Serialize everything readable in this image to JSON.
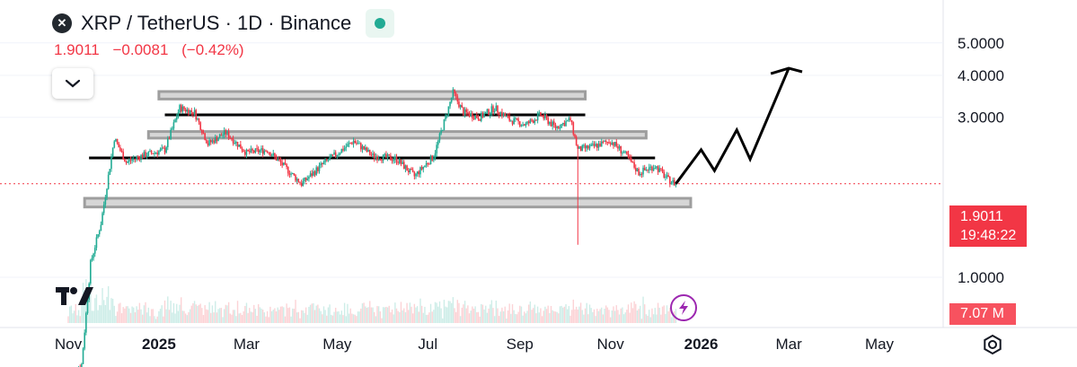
{
  "header": {
    "symbol_icon": "xrp-logo-icon",
    "title": "XRP / TetherUS · 1D · Binance",
    "last": "1.9011",
    "change": "−0.0081",
    "change_pct": "(−0.42%)"
  },
  "price_label": {
    "price": "1.9011",
    "countdown": "19:48:22"
  },
  "volume_label": "7.07 M",
  "colors": {
    "up": "#22ab94",
    "down": "#f23645",
    "zone": "#cfcfcf",
    "axis": "#131722"
  },
  "chart_data": {
    "type": "candlestick",
    "y_axis": {
      "scale": "log",
      "ticks": [
        1.0,
        3.0,
        4.0,
        5.0
      ],
      "tick_labels": [
        "1.0000",
        "3.0000",
        "4.0000",
        "5.0000"
      ]
    },
    "x_axis": {
      "tick_labels": [
        "Nov",
        "2025",
        "Mar",
        "May",
        "Jul",
        "Sep",
        "Nov",
        "2026",
        "Mar",
        "May"
      ]
    },
    "current_price": 1.9011,
    "price_path": [
      [
        "2024-11-01",
        0.5
      ],
      [
        "2024-11-10",
        0.55
      ],
      [
        "2024-11-16",
        1.1
      ],
      [
        "2024-11-23",
        1.45
      ],
      [
        "2024-12-02",
        2.6
      ],
      [
        "2024-12-10",
        2.2
      ],
      [
        "2024-12-20",
        2.3
      ],
      [
        "2025-01-05",
        2.4
      ],
      [
        "2025-01-15",
        3.2
      ],
      [
        "2025-01-25",
        3.1
      ],
      [
        "2025-02-03",
        2.5
      ],
      [
        "2025-02-15",
        2.7
      ],
      [
        "2025-03-01",
        2.35
      ],
      [
        "2025-03-15",
        2.4
      ],
      [
        "2025-04-07",
        1.9
      ],
      [
        "2025-04-20",
        2.15
      ],
      [
        "2025-05-12",
        2.55
      ],
      [
        "2025-05-25",
        2.3
      ],
      [
        "2025-06-10",
        2.25
      ],
      [
        "2025-06-22",
        2.0
      ],
      [
        "2025-07-05",
        2.3
      ],
      [
        "2025-07-12",
        2.9
      ],
      [
        "2025-07-18",
        3.55
      ],
      [
        "2025-07-25",
        3.1
      ],
      [
        "2025-08-05",
        3.0
      ],
      [
        "2025-08-15",
        3.2
      ],
      [
        "2025-08-25",
        2.95
      ],
      [
        "2025-09-05",
        2.85
      ],
      [
        "2025-09-15",
        3.05
      ],
      [
        "2025-09-25",
        2.8
      ],
      [
        "2025-10-05",
        2.95
      ],
      [
        "2025-10-10",
        2.4
      ],
      [
        "2025-10-20",
        2.45
      ],
      [
        "2025-11-01",
        2.55
      ],
      [
        "2025-11-10",
        2.35
      ],
      [
        "2025-11-20",
        2.05
      ],
      [
        "2025-12-01",
        2.15
      ],
      [
        "2025-12-10",
        1.95
      ],
      [
        "2025-12-15",
        1.9
      ]
    ],
    "flash_wick_low": 1.25,
    "resistance_zones": [
      {
        "from": "2025-01-01",
        "to": "2025-10-15",
        "low": 3.4,
        "high": 3.58
      },
      {
        "from": "2024-12-25",
        "to": "2025-11-25",
        "low": 2.6,
        "high": 2.72
      },
      {
        "from": "2024-11-12",
        "to": "2025-12-25",
        "low": 1.62,
        "high": 1.72
      }
    ],
    "horizontal_lines": [
      {
        "from": "2025-01-05",
        "to": "2025-10-15",
        "y": 3.05
      },
      {
        "from": "2024-11-15",
        "to": "2025-12-01",
        "y": 2.27
      }
    ],
    "projection_path": [
      [
        "2025-12-15",
        1.9
      ],
      [
        "2026-01-01",
        2.4
      ],
      [
        "2026-01-10",
        2.08
      ],
      [
        "2026-01-25",
        2.75
      ],
      [
        "2026-02-03",
        2.25
      ],
      [
        "2026-03-01",
        4.2
      ],
      [
        "2026-03-10",
        4.1
      ]
    ]
  }
}
